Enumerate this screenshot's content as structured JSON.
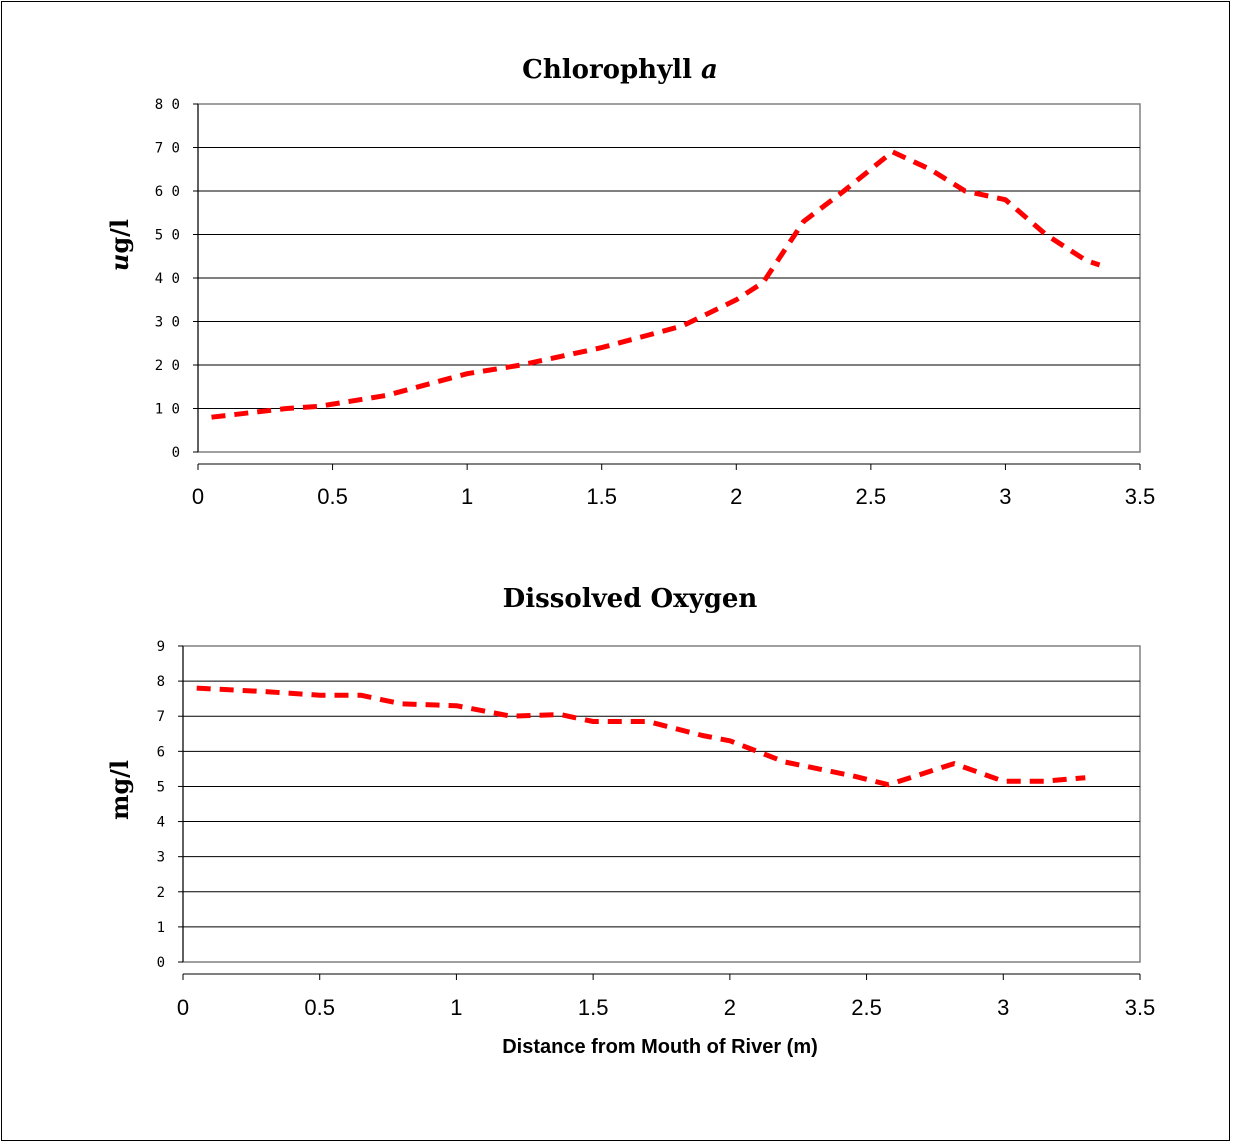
{
  "chart_data": [
    {
      "type": "line",
      "title": "Chlorophyll ",
      "title_italic": "a",
      "ylabel": "ug/l",
      "ylabel_italic": "u",
      "ylabel_rest": "g/l",
      "xlabel": "",
      "ylim": [
        0,
        80
      ],
      "xlim": [
        0,
        3.5
      ],
      "yticks": [
        0,
        10,
        20,
        30,
        40,
        50,
        60,
        70,
        80
      ],
      "xticks": [
        "0",
        "0.5",
        "1",
        "1.5",
        "2",
        "2.5",
        "3",
        "3.5"
      ],
      "grid": true,
      "series": [
        {
          "color": "#ff0000",
          "x": [
            0.05,
            0.33,
            0.45,
            0.7,
            1.0,
            1.2,
            1.35,
            1.5,
            1.8,
            2.0,
            2.1,
            2.25,
            2.4,
            2.58,
            2.72,
            2.85,
            3.0,
            3.15,
            3.3,
            3.35
          ],
          "y": [
            8,
            10,
            10.5,
            13,
            18,
            20,
            22,
            24,
            29,
            35,
            39,
            53,
            60,
            69,
            65,
            60,
            58,
            50,
            44,
            43
          ]
        }
      ]
    },
    {
      "type": "line",
      "title": "Dissolved Oxygen",
      "ylabel": "mg/l",
      "xlabel": "Distance from Mouth of River (m)",
      "ylim": [
        0,
        9
      ],
      "xlim": [
        0,
        3.5
      ],
      "yticks": [
        0,
        1,
        2,
        3,
        4,
        5,
        6,
        7,
        8,
        9
      ],
      "xticks": [
        "0",
        "0.5",
        "1",
        "1.5",
        "2",
        "2.5",
        "3",
        "3.5"
      ],
      "grid": true,
      "series": [
        {
          "color": "#ff0000",
          "x": [
            0.05,
            0.3,
            0.5,
            0.65,
            0.8,
            1.0,
            1.2,
            1.38,
            1.5,
            1.7,
            1.9,
            2.0,
            2.2,
            2.45,
            2.58,
            2.82,
            3.0,
            3.15,
            3.3
          ],
          "y": [
            7.8,
            7.7,
            7.6,
            7.6,
            7.35,
            7.3,
            7.0,
            7.05,
            6.85,
            6.85,
            6.45,
            6.3,
            5.7,
            5.3,
            5.05,
            5.65,
            5.15,
            5.15,
            5.25
          ]
        }
      ]
    }
  ]
}
